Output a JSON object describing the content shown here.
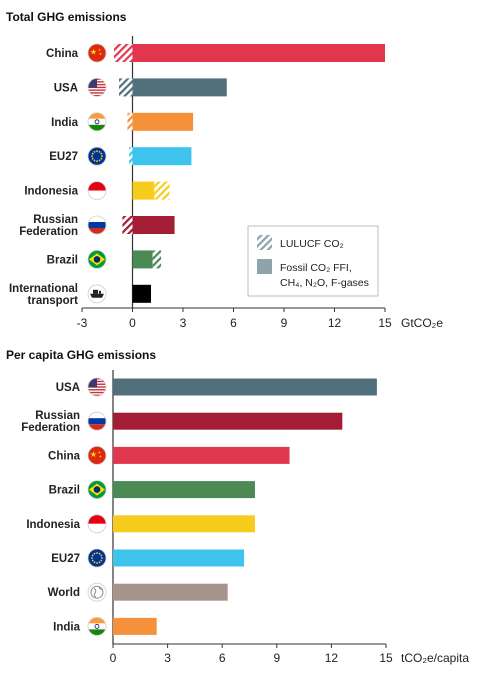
{
  "chart_data": [
    {
      "type": "bar",
      "title": "Total GHG emissions",
      "unit_label": "GtCO₂e",
      "xlim": [
        -3,
        15
      ],
      "ticks": [
        "-3",
        "0",
        "3",
        "6",
        "9",
        "12",
        "15"
      ],
      "categories": [
        {
          "name": "China",
          "flag": "china-flag-icon",
          "color": "#e0374f",
          "lulucf": [
            0,
            -1.1
          ],
          "fossil": 15.0
        },
        {
          "name": "USA",
          "flag": "usa-flag-icon",
          "color": "#51707c",
          "lulucf": [
            0,
            -0.8
          ],
          "fossil": 5.6
        },
        {
          "name": "India",
          "flag": "india-flag-icon",
          "color": "#f6913b",
          "lulucf": [
            0,
            -0.3
          ],
          "fossil": 3.6
        },
        {
          "name": "EU27",
          "flag": "eu-flag-icon",
          "color": "#3ec3ec",
          "lulucf": [
            0,
            -0.2
          ],
          "fossil": 3.5
        },
        {
          "name": "Indonesia",
          "flag": "indonesia-flag-icon",
          "color": "#f6cd1c",
          "lulucf": [
            1.3,
            2.2
          ],
          "fossil": 1.3
        },
        {
          "name": "Russian Federation",
          "flag": "russia-flag-icon",
          "color": "#a31e35",
          "lulucf": [
            0,
            -0.6
          ],
          "fossil": 2.5
        },
        {
          "name": "Brazil",
          "flag": "brazil-flag-icon",
          "color": "#4b8a55",
          "lulucf": [
            1.2,
            1.7
          ],
          "fossil": 1.2
        },
        {
          "name": "International transport",
          "flag": "ship-icon",
          "color": "#000000",
          "lulucf": null,
          "fossil": 1.1
        }
      ],
      "legend": [
        {
          "label": "LULUCF CO₂",
          "swatch": "hatched"
        },
        {
          "label": "Fossil CO₂ FFI, CH₄, N₂O, F-gases",
          "swatch": "solid"
        }
      ]
    },
    {
      "type": "bar",
      "title": "Per capita GHG emissions",
      "unit_label": "tCO₂e/capita",
      "xlim": [
        0,
        15
      ],
      "ticks": [
        "0",
        "3",
        "6",
        "9",
        "12",
        "15"
      ],
      "categories": [
        {
          "name": "USA",
          "flag": "usa-flag-icon",
          "color": "#51707c",
          "value": 14.5
        },
        {
          "name": "Russian Federation",
          "flag": "russia-flag-icon",
          "color": "#a31e35",
          "value": 12.6
        },
        {
          "name": "China",
          "flag": "china-flag-icon",
          "color": "#e0374f",
          "value": 9.7
        },
        {
          "name": "Brazil",
          "flag": "brazil-flag-icon",
          "color": "#4b8a55",
          "value": 7.8
        },
        {
          "name": "Indonesia",
          "flag": "indonesia-flag-icon",
          "color": "#f6cd1c",
          "value": 7.8
        },
        {
          "name": "EU27",
          "flag": "eu-flag-icon",
          "color": "#3ec3ec",
          "value": 7.2
        },
        {
          "name": "World",
          "flag": "globe-icon",
          "color": "#a7958d",
          "value": 6.3
        },
        {
          "name": "India",
          "flag": "india-flag-icon",
          "color": "#f6913b",
          "value": 2.4
        }
      ]
    }
  ]
}
